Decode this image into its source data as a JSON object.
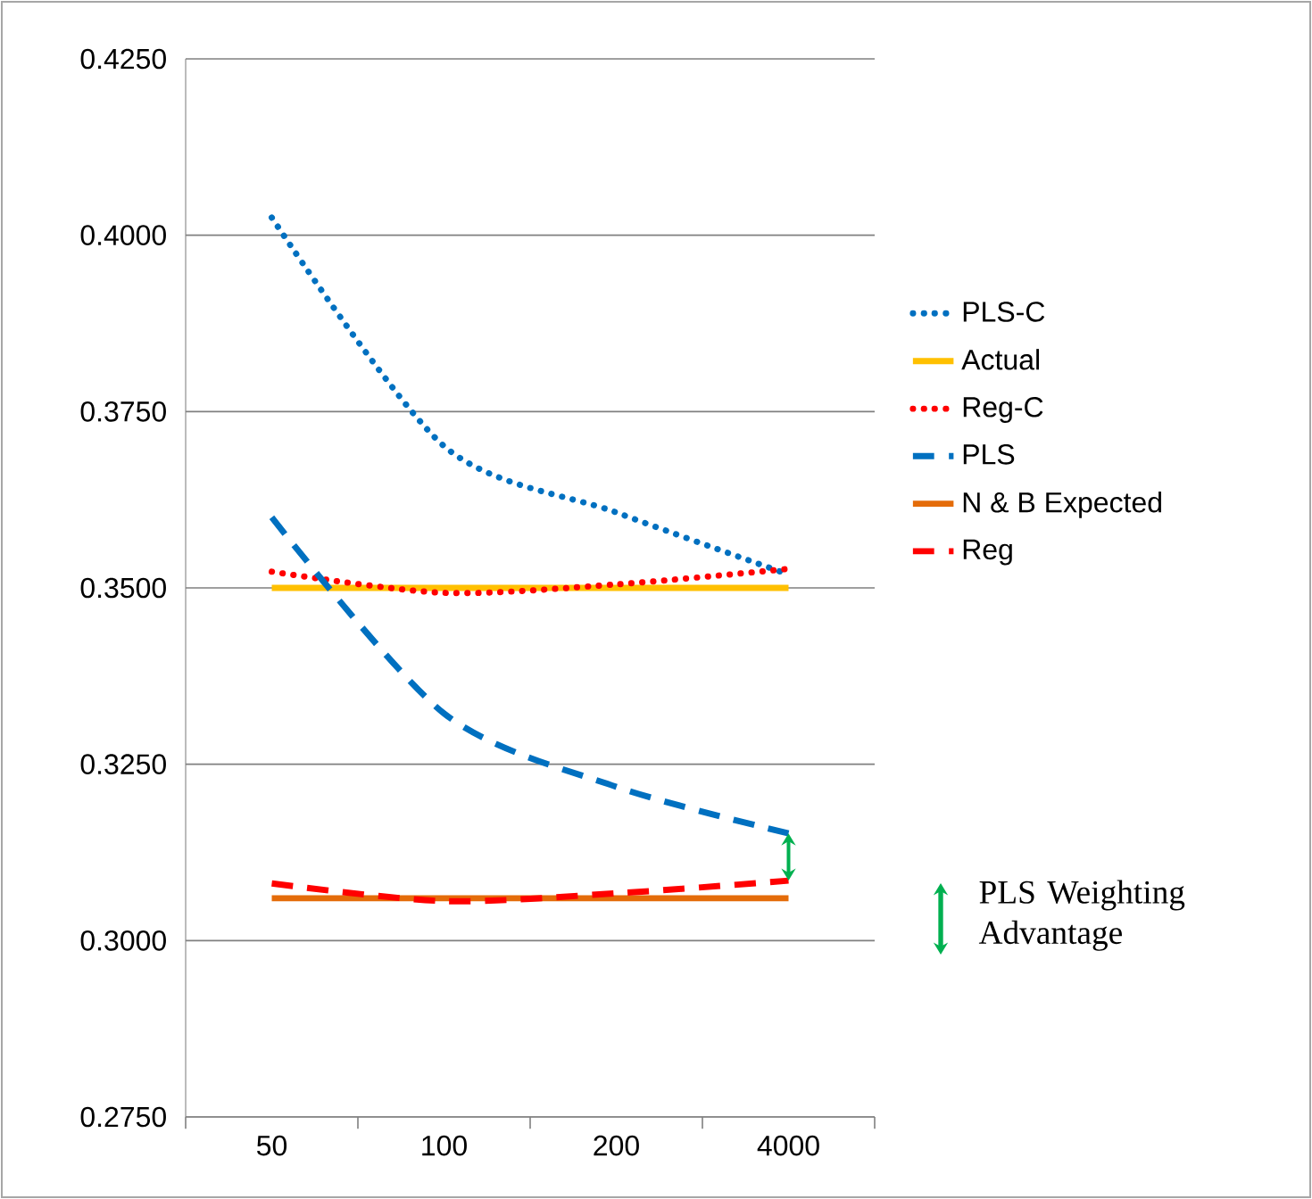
{
  "chart_data": {
    "type": "line",
    "categories": [
      "50",
      "100",
      "200",
      "4000"
    ],
    "series": [
      {
        "name": "PLS-C",
        "color": "#0070c0",
        "line_style": "dotted",
        "values": [
          0.4025,
          0.3701,
          0.3607,
          0.3519
        ]
      },
      {
        "name": "Actual",
        "color": "#ffc000",
        "line_style": "solid",
        "values": [
          0.35,
          0.35,
          0.35,
          0.35
        ]
      },
      {
        "name": "Reg-C",
        "color": "#ff0000",
        "line_style": "dotted",
        "values": [
          0.3523,
          0.3493,
          0.3505,
          0.3527
        ]
      },
      {
        "name": "PLS",
        "color": "#0070c0",
        "line_style": "dashed",
        "values": [
          0.36,
          0.3322,
          0.3218,
          0.3152
        ]
      },
      {
        "name": "N & B Expected",
        "color": "#e46c0a",
        "line_style": "solid",
        "values": [
          0.306,
          0.306,
          0.306,
          0.306
        ]
      },
      {
        "name": "Reg",
        "color": "#ff0000",
        "line_style": "dashed",
        "values": [
          0.3081,
          0.3056,
          0.3067,
          0.3085
        ]
      }
    ],
    "ylim": [
      0.275,
      0.425
    ],
    "yticks": [
      {
        "value": 0.275,
        "label": "0.2750"
      },
      {
        "value": 0.3,
        "label": "0.3000"
      },
      {
        "value": 0.325,
        "label": "0.3250"
      },
      {
        "value": 0.35,
        "label": "0.3500"
      },
      {
        "value": 0.375,
        "label": "0.3750"
      },
      {
        "value": 0.4,
        "label": "0.4000"
      },
      {
        "value": 0.425,
        "label": "0.4250"
      }
    ],
    "grid": "y",
    "legend": "right",
    "marker": "none",
    "annotations": [
      "PLS Weighting Advantage"
    ]
  }
}
